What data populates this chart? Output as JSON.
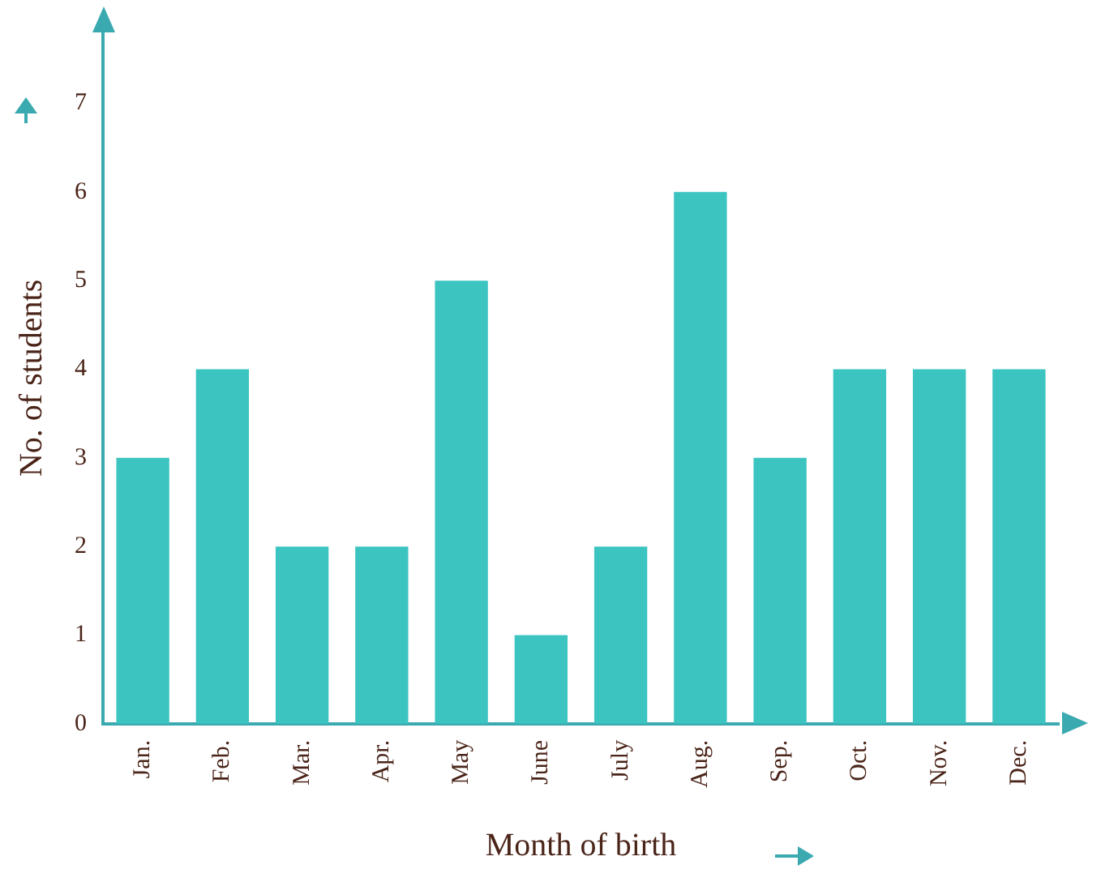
{
  "chart_data": {
    "type": "bar",
    "xlabel": "Month of birth",
    "ylabel": "No. of students",
    "categories": [
      "Jan.",
      "Feb.",
      "Mar.",
      "Apr.",
      "May",
      "June",
      "July",
      "Aug.",
      "Sep.",
      "Oct.",
      "Nov.",
      "Dec."
    ],
    "values": [
      3,
      4,
      2,
      2,
      5,
      1,
      2,
      6,
      3,
      4,
      4,
      4
    ],
    "color": "#3cc4c0",
    "ylim": [
      0,
      7.8
    ],
    "yticks": [
      0,
      1,
      2,
      3,
      4,
      5,
      6,
      7
    ],
    "grid": false,
    "legend": false
  }
}
